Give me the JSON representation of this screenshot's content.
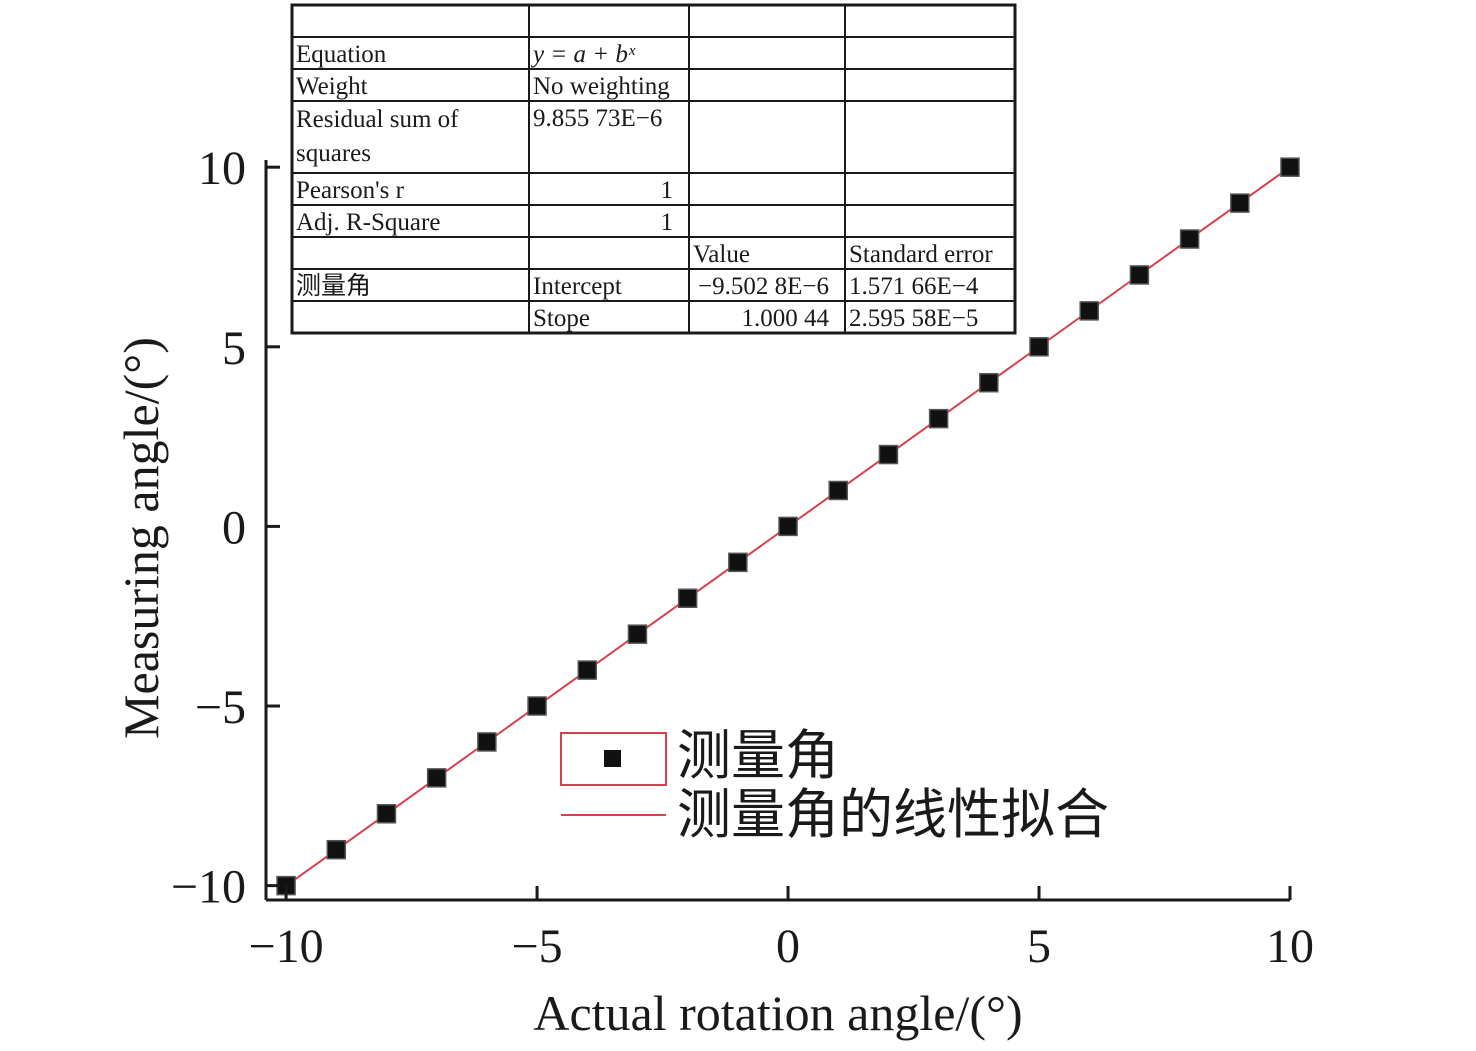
{
  "chart_data": {
    "type": "scatter",
    "xlabel": "Actual rotation angle/(°)",
    "ylabel": "Measuring angle/(°)",
    "xlim": [
      -10.4,
      10
    ],
    "ylim": [
      -10.4,
      10.2
    ],
    "xticks": [
      "−10",
      "−5",
      "0",
      "5",
      "10"
    ],
    "yticks": [
      "−10",
      "−5",
      "0",
      "5",
      "10"
    ],
    "grid": false,
    "series": [
      {
        "name": "测量角",
        "kind": "scatter",
        "marker": "square",
        "color": "#111111",
        "x": [
          -10,
          -9,
          -8,
          -7,
          -6,
          -5,
          -4,
          -3,
          -2,
          -1,
          0,
          1,
          2,
          3,
          4,
          5,
          6,
          7,
          8,
          9,
          10
        ],
        "y": [
          -10,
          -9,
          -8,
          -7,
          -6,
          -5,
          -4,
          -3,
          -2,
          -1,
          0,
          1,
          2,
          3,
          4,
          5,
          6,
          7,
          8,
          9,
          10
        ]
      },
      {
        "name": "测量角的线性拟合",
        "kind": "line",
        "color": "#d9404f",
        "x": [
          -10,
          10
        ],
        "y": [
          -10.0045,
          10.0044
        ]
      }
    ],
    "legend_position": "bottom-center",
    "fit_table": {
      "rows": [
        [
          "",
          "",
          "",
          ""
        ],
        [
          "Equation",
          "y = a + bˣ",
          "",
          ""
        ],
        [
          "Weight",
          "No weighting",
          "",
          ""
        ],
        [
          "Residual sum of squares",
          "9.855 73E−6",
          "",
          ""
        ],
        [
          "Pearson's r",
          "1",
          "",
          ""
        ],
        [
          "Adj. R-Square",
          "1",
          "",
          ""
        ],
        [
          "",
          "",
          "Value",
          "Standard error"
        ],
        [
          "测量角",
          "Intercept",
          "−9.502 8E−6",
          "1.571 66E−4"
        ],
        [
          "",
          "Stope",
          "1.000 44",
          "2.595 58E−5"
        ]
      ]
    }
  }
}
